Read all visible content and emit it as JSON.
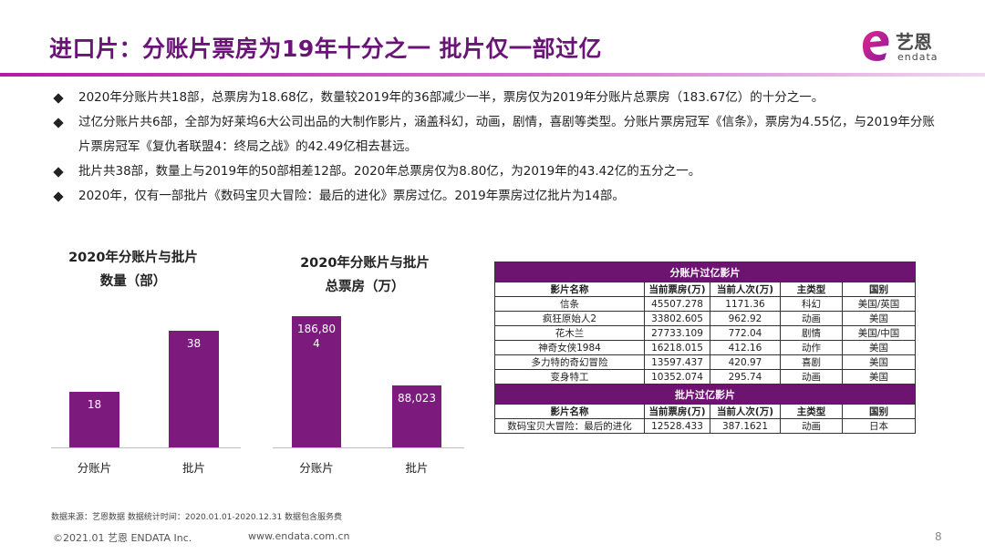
{
  "title": "进口片：分账片票房为19年十分之一  批片仅一部过亿",
  "logo": {
    "cn": "艺恩",
    "en": "endata"
  },
  "bullets": [
    "2020年分账片共18部，总票房为18.68亿，数量较2019年的36部减少一半，票房仅为2019年分账片总票房（183.67亿）的十分之一。",
    "过亿分账片共6部，全部为好莱坞6大公司出品的大制作影片，涵盖科幻，动画，剧情，喜剧等类型。分账片票房冠军《信条》，票房为4.55亿，与2019年分账片票房冠军《复仇者联盟4：终局之战》的42.49亿相去甚远。",
    "批片共38部，数量上与2019年的50部相差12部。2020年总票房仅为8.80亿，为2019年的43.42亿的五分之一。",
    "2020年，仅有一部批片《数码宝贝大冒险：最后的进化》票房过亿。2019年票房过亿批片为14部。"
  ],
  "chart_data": [
    {
      "type": "bar",
      "title_line1": "2020年分账片与批片",
      "title_line2": "数量（部）",
      "categories": [
        "分账片",
        "批片"
      ],
      "values": [
        18,
        38
      ],
      "value_labels": [
        "18",
        "38"
      ],
      "ylim": [
        0,
        42
      ],
      "color": "#7c1a7d"
    },
    {
      "type": "bar",
      "title_line1": "2020年分账片与批片",
      "title_line2": "总票房（万）",
      "categories": [
        "分账片",
        "批片"
      ],
      "values": [
        186804,
        88023
      ],
      "value_labels": [
        "186,80\n4",
        "88,023"
      ],
      "ylim": [
        0,
        190000
      ],
      "color": "#7c1a7d"
    }
  ],
  "table": {
    "section1_title": "分账片过亿影片",
    "section2_title": "批片过亿影片",
    "headers": [
      "影片名称",
      "当前票房(万)",
      "当前人次(万)",
      "主类型",
      "国别"
    ],
    "section1_rows": [
      [
        "信条",
        "45507.278",
        "1171.36",
        "科幻",
        "美国/英国"
      ],
      [
        "疯狂原始人2",
        "33802.605",
        "962.92",
        "动画",
        "美国"
      ],
      [
        "花木兰",
        "27733.109",
        "772.04",
        "剧情",
        "美国/中国"
      ],
      [
        "神奇女侠1984",
        "16218.015",
        "412.16",
        "动作",
        "美国"
      ],
      [
        "多力特的奇幻冒险",
        "13597.437",
        "420.97",
        "喜剧",
        "美国"
      ],
      [
        "变身特工",
        "10352.074",
        "295.74",
        "动画",
        "美国"
      ]
    ],
    "section2_rows": [
      [
        "数码宝贝大冒险：最后的进化",
        "12528.433",
        "387.1621",
        "动画",
        "日本"
      ]
    ]
  },
  "footnote": "数据来源：艺恩数据   数据统计时间：2020.01.01-2020.12.31 数据包含服务费",
  "footer": {
    "copyright": "©2021.01 艺恩 ENDATA Inc.",
    "url": "www.endata.com.cn",
    "page": "8"
  }
}
